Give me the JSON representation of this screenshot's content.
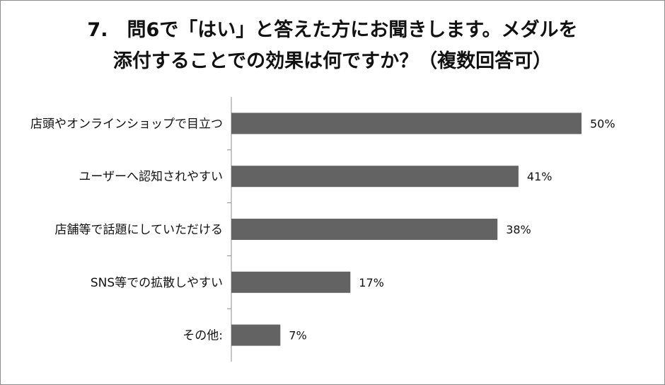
{
  "title_lines": [
    "7.　問6で「はい」と答えた方にお聞きします。メダルを",
    "添付することでの効果は何ですか？（複数回答可）"
  ],
  "colors": {
    "bar": "#636363",
    "axis": "#8c8c8c",
    "text": "#111111"
  },
  "chart_data": {
    "type": "bar",
    "orientation": "horizontal",
    "title": "7.　問6で「はい」と答えた方にお聞きします。メダルを添付することでの効果は何ですか？（複数回答可）",
    "categories": [
      "店頭やオンラインショップで目立つ",
      "ユーザーへ認知されやすい",
      "店舗等で話題にしていただける",
      "SNS等での拡散しやすい",
      "その他:"
    ],
    "values": [
      50,
      41,
      38,
      17,
      7
    ],
    "data_labels": [
      "50%",
      "41%",
      "38%",
      "17%",
      "7%"
    ],
    "unit": "%",
    "xlim": [
      0,
      50
    ],
    "grid": false,
    "legend": "none"
  }
}
